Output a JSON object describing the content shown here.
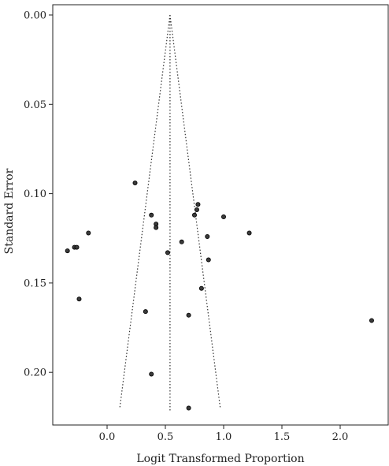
{
  "chart_data": {
    "type": "scatter",
    "title": "",
    "xlabel": "Logit Transformed Proportion",
    "ylabel": "Standard Error",
    "xlim": [
      -0.45,
      2.45
    ],
    "ylim": [
      0.0,
      0.229
    ],
    "y_reversed": true,
    "xticks": [
      0.0,
      0.5,
      1.0,
      1.5,
      2.0
    ],
    "xtick_labels": [
      "0.0",
      "0.5",
      "1.0",
      "1.5",
      "2.0"
    ],
    "yticks": [
      0.0,
      0.05,
      0.1,
      0.15,
      0.2
    ],
    "ytick_labels": [
      "0.00",
      "0.05",
      "0.10",
      "0.15",
      "0.20"
    ],
    "grid": false,
    "legend": "none",
    "pooled_estimate": 0.54,
    "funnel_se_max": 0.22,
    "points": [
      {
        "x": 0.24,
        "y": 0.094
      },
      {
        "x": 0.78,
        "y": 0.106
      },
      {
        "x": 0.77,
        "y": 0.109
      },
      {
        "x": 0.38,
        "y": 0.112
      },
      {
        "x": 0.75,
        "y": 0.112
      },
      {
        "x": 1.0,
        "y": 0.113
      },
      {
        "x": 0.42,
        "y": 0.117
      },
      {
        "x": 0.42,
        "y": 0.119
      },
      {
        "x": 1.22,
        "y": 0.122
      },
      {
        "x": -0.16,
        "y": 0.122
      },
      {
        "x": 0.86,
        "y": 0.124
      },
      {
        "x": 0.64,
        "y": 0.127
      },
      {
        "x": -0.28,
        "y": 0.13
      },
      {
        "x": -0.26,
        "y": 0.13
      },
      {
        "x": -0.34,
        "y": 0.132
      },
      {
        "x": 0.52,
        "y": 0.133
      },
      {
        "x": 0.87,
        "y": 0.137
      },
      {
        "x": 0.81,
        "y": 0.153
      },
      {
        "x": -0.24,
        "y": 0.159
      },
      {
        "x": 0.33,
        "y": 0.166
      },
      {
        "x": 0.7,
        "y": 0.168
      },
      {
        "x": 2.27,
        "y": 0.171
      },
      {
        "x": 0.38,
        "y": 0.201
      },
      {
        "x": 0.7,
        "y": 0.22
      }
    ],
    "colors": {
      "point_fill": "#3a3a3a",
      "point_stroke": "#000000",
      "line": "#333333",
      "axis": "#222222"
    }
  }
}
